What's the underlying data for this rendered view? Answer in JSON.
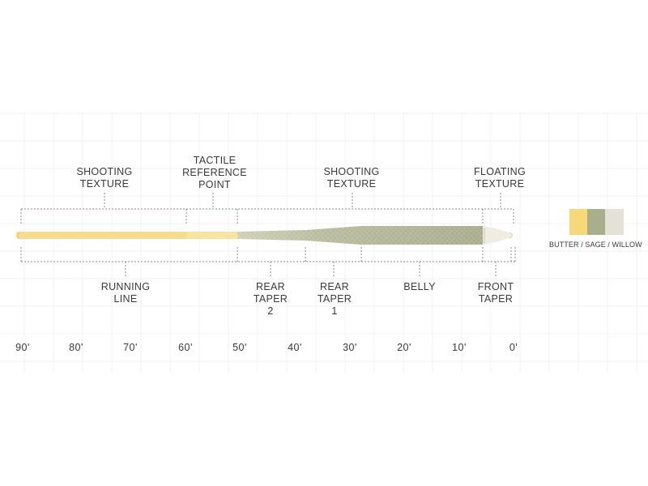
{
  "top_labels": [
    {
      "id": "shooting-texture-left",
      "lines": [
        "SHOOTING",
        "TEXTURE"
      ]
    },
    {
      "id": "tactile-reference-point",
      "lines": [
        "TACTILE",
        "REFERENCE",
        "POINT"
      ]
    },
    {
      "id": "shooting-texture-right",
      "lines": [
        "SHOOTING",
        "TEXTURE"
      ]
    },
    {
      "id": "floating-texture",
      "lines": [
        "FLOATING",
        "TEXTURE"
      ]
    }
  ],
  "bottom_labels": [
    {
      "id": "running-line",
      "lines": [
        "RUNNING",
        "LINE"
      ]
    },
    {
      "id": "rear-taper-2",
      "lines": [
        "REAR",
        "TAPER",
        "2"
      ]
    },
    {
      "id": "rear-taper-1",
      "lines": [
        "REAR",
        "TAPER",
        "1"
      ]
    },
    {
      "id": "belly",
      "lines": [
        "BELLY"
      ]
    },
    {
      "id": "front-taper",
      "lines": [
        "FRONT",
        "TAPER"
      ]
    }
  ],
  "scale_ticks": [
    "90'",
    "80'",
    "70'",
    "60'",
    "50'",
    "40'",
    "30'",
    "20'",
    "10'",
    "0'"
  ],
  "legend": {
    "caption": "BUTTER / SAGE / WILLOW",
    "swatches": [
      {
        "name": "butter",
        "color": "#f7d97a"
      },
      {
        "name": "sage",
        "color": "#a9ae8c"
      },
      {
        "name": "willow",
        "color": "#e4e2d6"
      }
    ]
  },
  "colors": {
    "running_line": "#f6dc8c",
    "head": "#b3b698",
    "tip": "#efece2",
    "bracket": "#888888",
    "grid": "#f1f1f1"
  }
}
